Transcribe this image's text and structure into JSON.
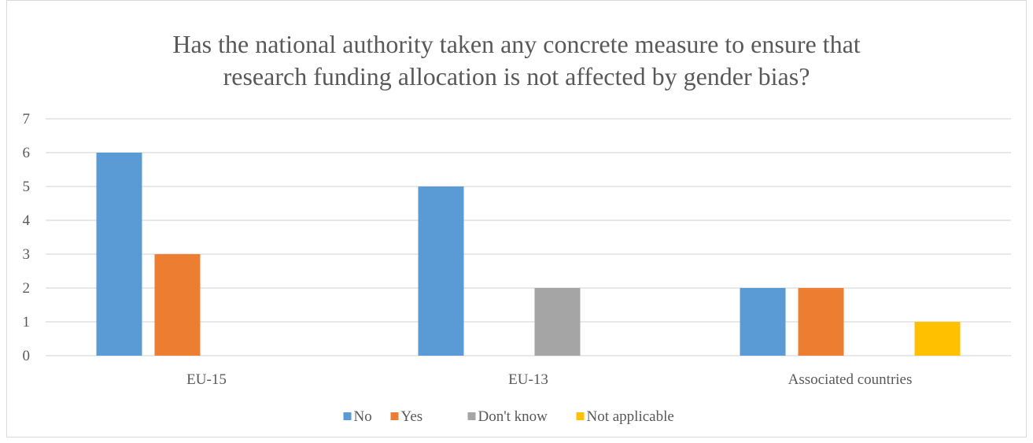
{
  "chart_data": {
    "type": "bar",
    "title_lines": [
      "Has the national authority taken any concrete measure to ensure that",
      "research funding allocation is not affected by gender bias?"
    ],
    "categories": [
      "EU-15",
      "EU-13",
      "Associated countries"
    ],
    "series": [
      {
        "name": "No",
        "values": [
          6,
          5,
          2
        ],
        "color": "#5b9bd5"
      },
      {
        "name": "Yes",
        "values": [
          3,
          0,
          2
        ],
        "color": "#ed7d31"
      },
      {
        "name": "Don't know",
        "values": [
          0,
          2,
          0
        ],
        "color": "#a5a5a5"
      },
      {
        "name": "Not applicable",
        "values": [
          0,
          0,
          1
        ],
        "color": "#ffc000"
      }
    ],
    "yticks": [
      "0",
      "1",
      "2",
      "3",
      "4",
      "5",
      "6",
      "7"
    ],
    "ylim": [
      0,
      7
    ],
    "grid": true,
    "legend_position": "bottom"
  }
}
